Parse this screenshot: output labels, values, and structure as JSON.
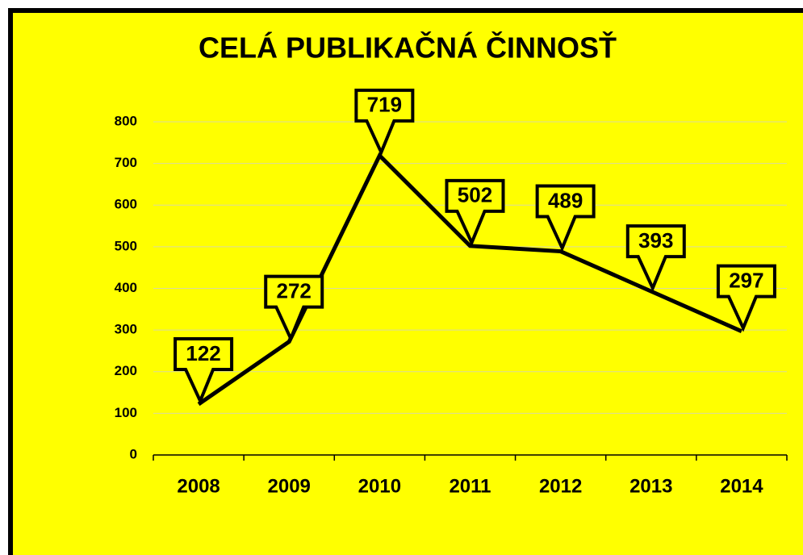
{
  "chart_data": {
    "type": "line",
    "title": "CELÁ PUBLIKAČNÁ ČINNOSŤ",
    "categories": [
      "2008",
      "2009",
      "2010",
      "2011",
      "2012",
      "2013",
      "2014"
    ],
    "values": [
      122,
      272,
      719,
      502,
      489,
      393,
      297
    ],
    "color": "#000000",
    "background": "#ffff00",
    "ylim": [
      0,
      800
    ],
    "yticks": [
      0,
      100,
      200,
      300,
      400,
      500,
      600,
      700,
      800
    ],
    "grid": true
  }
}
